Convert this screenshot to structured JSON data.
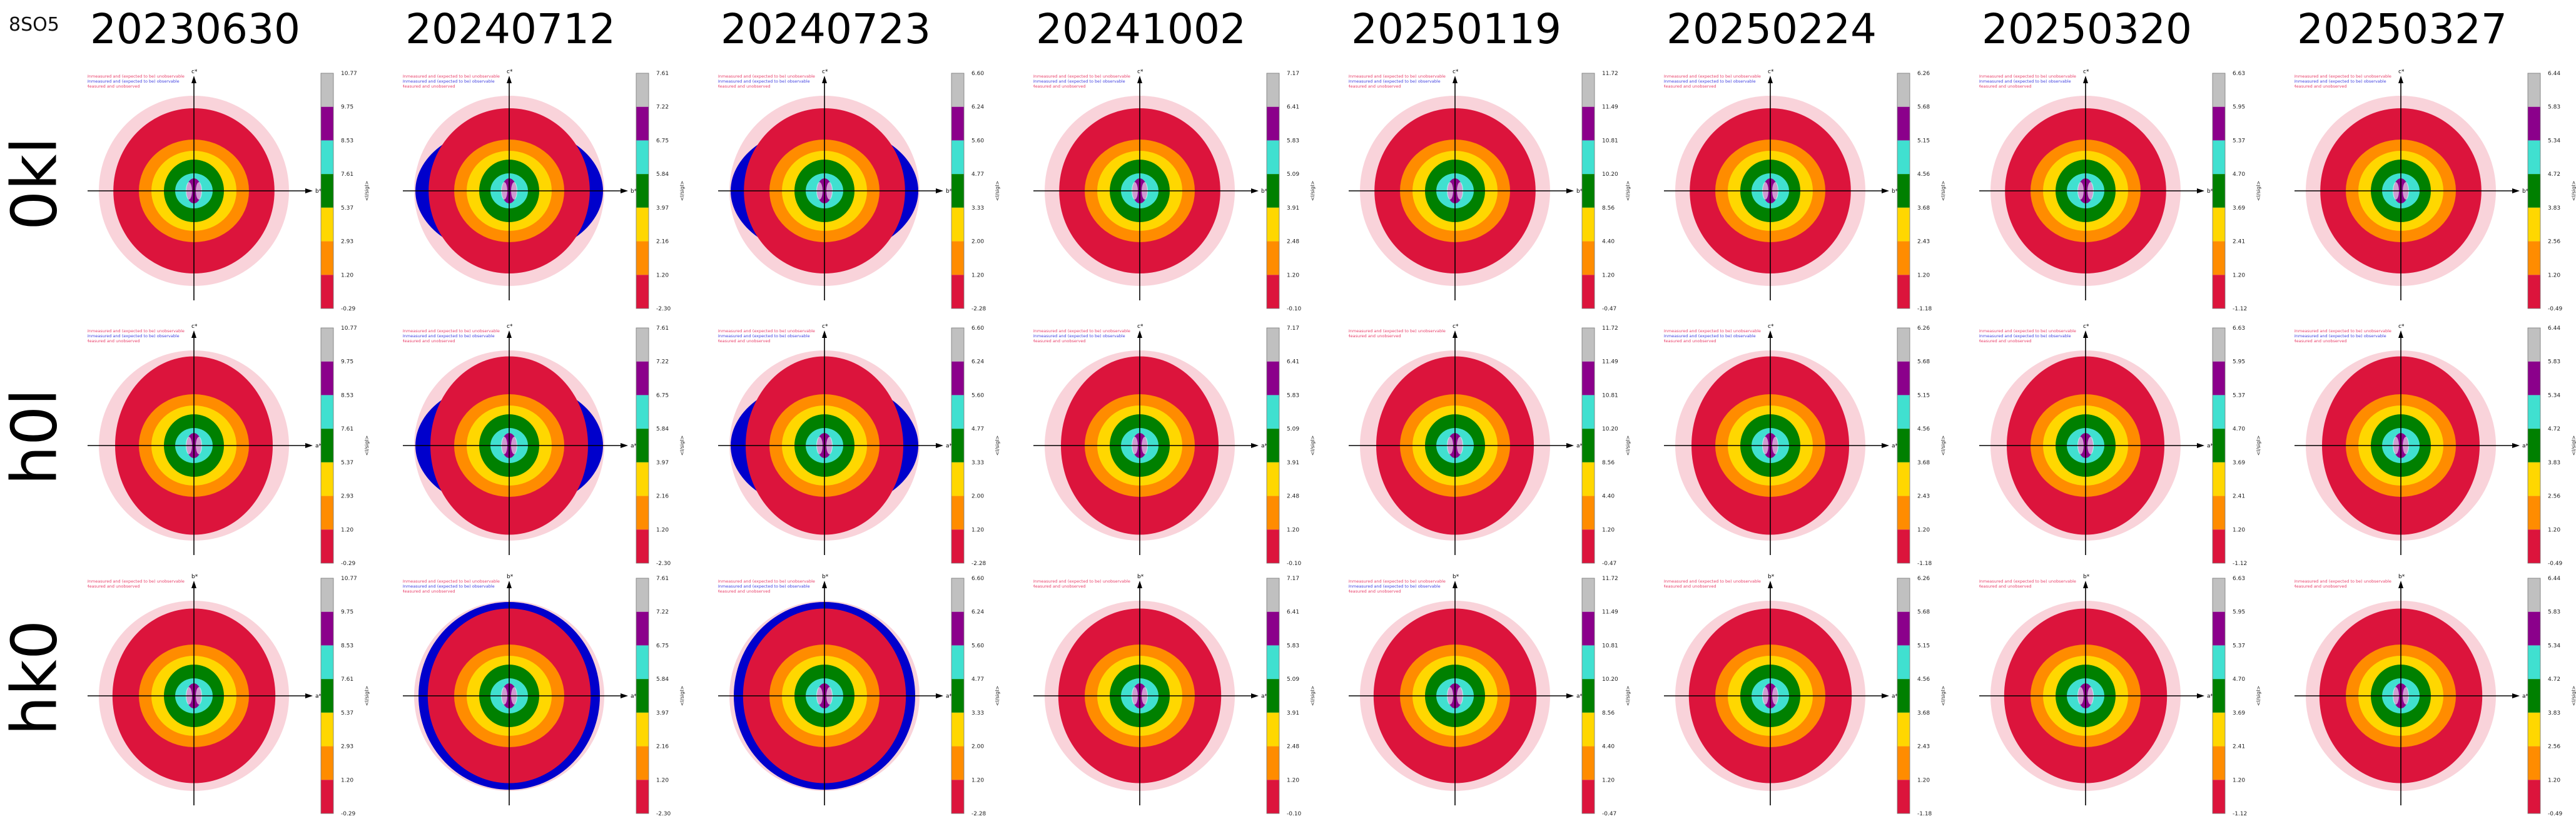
{
  "figure_id": "8SO5",
  "chart_data": {
    "type": "heatmap",
    "columns": [
      "20230630",
      "20240712",
      "20240723",
      "20241002",
      "20250119",
      "20250224",
      "20250320",
      "20250327"
    ],
    "rows": [
      {
        "label": "0kl",
        "axis_up": "c*",
        "axis_right": "b*"
      },
      {
        "label": "h0l",
        "axis_up": "c*",
        "axis_right": "a*"
      },
      {
        "label": "hk0",
        "axis_up": "b*",
        "axis_right": "a*"
      }
    ],
    "colorbar_label": "<I/sigI>",
    "colorbar_colors": [
      "#c0c0c0",
      "#8b008b",
      "#40e0d0",
      "#008000",
      "#ffd700",
      "#ff8c00",
      "#dc143c"
    ],
    "colorbar_ticks": [
      [
        "10.77",
        "9.75",
        "8.53",
        "7.61",
        "5.37",
        "2.93",
        "1.20",
        "-0.29"
      ],
      [
        "7.61",
        "7.22",
        "6.75",
        "5.84",
        "3.97",
        "2.16",
        "1.20",
        "-2.30"
      ],
      [
        "6.60",
        "6.24",
        "5.60",
        "4.77",
        "3.33",
        "2.00",
        "1.20",
        "-2.28"
      ],
      [
        "7.17",
        "6.41",
        "5.83",
        "5.09",
        "3.91",
        "2.48",
        "1.20",
        "-0.10"
      ],
      [
        "11.72",
        "11.49",
        "10.81",
        "10.20",
        "8.56",
        "4.40",
        "1.20",
        "-0.47"
      ],
      [
        "6.26",
        "5.68",
        "5.15",
        "4.56",
        "3.68",
        "2.43",
        "1.20",
        "-1.18"
      ],
      [
        "6.63",
        "5.95",
        "5.37",
        "4.70",
        "3.69",
        "2.41",
        "1.20",
        "-1.12"
      ],
      [
        "6.44",
        "5.83",
        "5.34",
        "4.72",
        "3.83",
        "2.56",
        "1.20",
        "-0.49"
      ]
    ],
    "legend_entries": [
      {
        "label": "Unmeasured and (expected to be) unobservable",
        "color": "#f9d3da",
        "text_color": "#e8406a"
      },
      {
        "label": "Unmeasured and (expected to be) observable",
        "color": "#0000cc",
        "text_color": "#4040e0"
      },
      {
        "label": "Measured and unobserved",
        "color": "#dc143c",
        "text_color": "#e8406a"
      }
    ],
    "legend_shown": [
      [
        [
          0,
          1,
          2
        ],
        [
          0,
          1,
          2
        ],
        [
          0,
          1,
          2
        ],
        [
          0,
          1,
          2
        ],
        [
          0,
          1,
          2
        ],
        [
          0,
          1,
          2
        ],
        [
          0,
          1,
          2
        ],
        [
          0,
          1,
          2
        ]
      ],
      [
        [
          0,
          1,
          2
        ],
        [
          0,
          1,
          2
        ],
        [
          0,
          1,
          2
        ],
        [
          0,
          1,
          2
        ],
        [
          0,
          2
        ],
        [
          0,
          1,
          2
        ],
        [
          0,
          1,
          2
        ],
        [
          0,
          1,
          2
        ]
      ],
      [
        [
          0,
          2
        ],
        [
          0,
          1,
          2
        ],
        [
          0,
          1,
          2
        ],
        [
          0,
          2
        ],
        [
          0,
          1,
          2
        ],
        [
          0,
          2
        ],
        [
          0,
          2
        ],
        [
          0,
          2
        ]
      ]
    ]
  }
}
